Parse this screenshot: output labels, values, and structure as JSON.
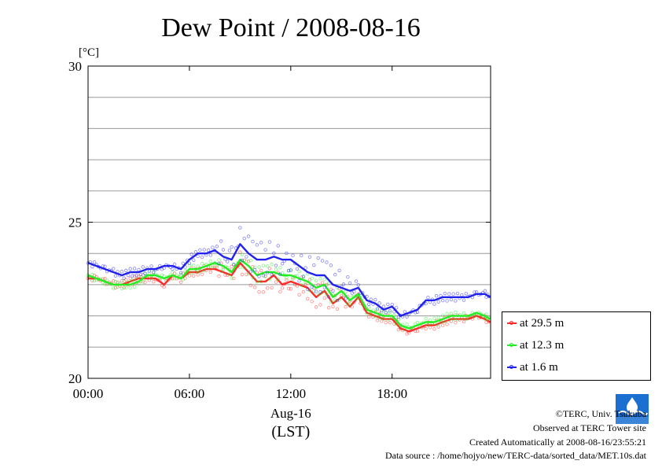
{
  "chart_data": {
    "type": "line",
    "title": "Dew Point / 2008-08-16",
    "unit_label": "[°C]",
    "ylim": [
      20,
      30
    ],
    "yticks": [
      "20",
      "25",
      "30"
    ],
    "y_gridlines": [
      21,
      22,
      23,
      24,
      25,
      26,
      27,
      28,
      29
    ],
    "xlim": [
      0,
      23.83
    ],
    "xticks": [
      {
        "value": 0,
        "label": "00:00"
      },
      {
        "value": 6,
        "label": "06:00"
      },
      {
        "value": 12,
        "label": "12:00"
      },
      {
        "value": 18,
        "label": "18:00"
      }
    ],
    "date_label": "Aug-16",
    "xlabel": "(LST)",
    "grid": "horizontal",
    "legend_position": "right",
    "series": [
      {
        "name": "at 29.5 m",
        "color": "#ff2a2a",
        "x": [
          0,
          0.5,
          1,
          1.5,
          2,
          2.5,
          3,
          3.5,
          4,
          4.5,
          5,
          5.5,
          6,
          6.5,
          7,
          7.5,
          8,
          8.5,
          9,
          9.5,
          10,
          10.5,
          11,
          11.5,
          12,
          12.5,
          13,
          13.5,
          14,
          14.5,
          15,
          15.5,
          16,
          16.5,
          17,
          17.5,
          18,
          18.5,
          19,
          19.5,
          20,
          20.5,
          21,
          21.5,
          22,
          22.5,
          23,
          23.5,
          23.8
        ],
        "values": [
          23.2,
          23.2,
          23.1,
          23.0,
          23.0,
          23.1,
          23.2,
          23.2,
          23.2,
          23.0,
          23.3,
          23.2,
          23.4,
          23.4,
          23.5,
          23.5,
          23.4,
          23.3,
          23.7,
          23.4,
          23.1,
          23.1,
          23.3,
          23.0,
          23.1,
          23.0,
          22.9,
          22.6,
          22.8,
          22.4,
          22.6,
          22.3,
          22.6,
          22.1,
          22.0,
          21.9,
          21.9,
          21.6,
          21.5,
          21.6,
          21.7,
          21.7,
          21.8,
          21.9,
          21.9,
          21.9,
          22.0,
          21.9,
          21.8
        ]
      },
      {
        "name": "at 12.3 m",
        "color": "#22ee22",
        "x": [
          0,
          0.5,
          1,
          1.5,
          2,
          2.5,
          3,
          3.5,
          4,
          4.5,
          5,
          5.5,
          6,
          6.5,
          7,
          7.5,
          8,
          8.5,
          9,
          9.5,
          10,
          10.5,
          11,
          11.5,
          12,
          12.5,
          13,
          13.5,
          14,
          14.5,
          15,
          15.5,
          16,
          16.5,
          17,
          17.5,
          18,
          18.5,
          19,
          19.5,
          20,
          20.5,
          21,
          21.5,
          22,
          22.5,
          23,
          23.5,
          23.8
        ],
        "values": [
          23.3,
          23.2,
          23.1,
          23.0,
          23.0,
          23.0,
          23.1,
          23.3,
          23.3,
          23.2,
          23.3,
          23.2,
          23.5,
          23.5,
          23.6,
          23.7,
          23.6,
          23.4,
          23.8,
          23.6,
          23.3,
          23.4,
          23.4,
          23.3,
          23.3,
          23.2,
          23.1,
          22.9,
          23.0,
          22.6,
          22.8,
          22.5,
          22.7,
          22.2,
          22.1,
          22.0,
          22.0,
          21.7,
          21.6,
          21.7,
          21.8,
          21.8,
          21.9,
          22.0,
          22.0,
          22.0,
          22.1,
          22.0,
          21.9
        ]
      },
      {
        "name": "at 1.6 m",
        "color": "#2222ee",
        "x": [
          0,
          0.5,
          1,
          1.5,
          2,
          2.5,
          3,
          3.5,
          4,
          4.5,
          5,
          5.5,
          6,
          6.5,
          7,
          7.5,
          8,
          8.5,
          9,
          9.5,
          10,
          10.5,
          11,
          11.5,
          12,
          12.5,
          13,
          13.5,
          14,
          14.5,
          15,
          15.5,
          16,
          16.5,
          17,
          17.5,
          18,
          18.5,
          19,
          19.5,
          20,
          20.5,
          21,
          21.5,
          22,
          22.5,
          23,
          23.5,
          23.8
        ],
        "values": [
          23.7,
          23.6,
          23.5,
          23.4,
          23.3,
          23.4,
          23.4,
          23.5,
          23.5,
          23.6,
          23.6,
          23.5,
          23.8,
          24.0,
          24.0,
          24.1,
          23.9,
          23.8,
          24.3,
          24.0,
          23.8,
          23.8,
          23.9,
          23.8,
          23.8,
          23.6,
          23.4,
          23.3,
          23.3,
          23.0,
          22.9,
          22.8,
          22.9,
          22.5,
          22.4,
          22.2,
          22.3,
          22.0,
          22.1,
          22.2,
          22.5,
          22.5,
          22.6,
          22.6,
          22.6,
          22.6,
          22.7,
          22.7,
          22.6
        ]
      }
    ]
  },
  "footer": {
    "copyright": "©TERC, Univ. Tsukuba",
    "observed": "Observed at TERC Tower site",
    "created": "Created Automatically at 2008-08-16/23:55:21",
    "source": "Data source : /home/hojyo/new/TERC-data/sorted_data/MET.10s.dat"
  },
  "logo": {
    "text": "TERC",
    "color": "#1a6fd0"
  }
}
